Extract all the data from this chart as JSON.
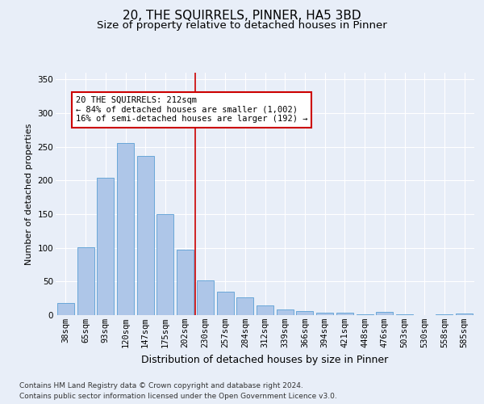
{
  "title1": "20, THE SQUIRRELS, PINNER, HA5 3BD",
  "title2": "Size of property relative to detached houses in Pinner",
  "xlabel": "Distribution of detached houses by size in Pinner",
  "ylabel": "Number of detached properties",
  "categories": [
    "38sqm",
    "65sqm",
    "93sqm",
    "120sqm",
    "147sqm",
    "175sqm",
    "202sqm",
    "230sqm",
    "257sqm",
    "284sqm",
    "312sqm",
    "339sqm",
    "366sqm",
    "394sqm",
    "421sqm",
    "448sqm",
    "476sqm",
    "503sqm",
    "530sqm",
    "558sqm",
    "585sqm"
  ],
  "values": [
    18,
    101,
    204,
    256,
    236,
    150,
    97,
    52,
    35,
    26,
    14,
    8,
    6,
    4,
    4,
    1,
    5,
    1,
    0,
    1,
    2
  ],
  "bar_color": "#aec6e8",
  "bar_edge_color": "#5a9fd4",
  "annotation_text_line1": "20 THE SQUIRRELS: 212sqm",
  "annotation_text_line2": "← 84% of detached houses are smaller (1,002)",
  "annotation_text_line3": "16% of semi-detached houses are larger (192) →",
  "annotation_box_color": "#ffffff",
  "annotation_box_edge_color": "#cc0000",
  "vline_color": "#cc0000",
  "vline_x": 6.5,
  "ylim": [
    0,
    360
  ],
  "yticks": [
    0,
    50,
    100,
    150,
    200,
    250,
    300,
    350
  ],
  "bg_color": "#e8eef8",
  "plot_bg_color": "#e8eef8",
  "footer_line1": "Contains HM Land Registry data © Crown copyright and database right 2024.",
  "footer_line2": "Contains public sector information licensed under the Open Government Licence v3.0.",
  "title1_fontsize": 11,
  "title2_fontsize": 9.5,
  "xlabel_fontsize": 9,
  "ylabel_fontsize": 8,
  "tick_fontsize": 7.5,
  "annotation_fontsize": 7.5,
  "footer_fontsize": 6.5
}
